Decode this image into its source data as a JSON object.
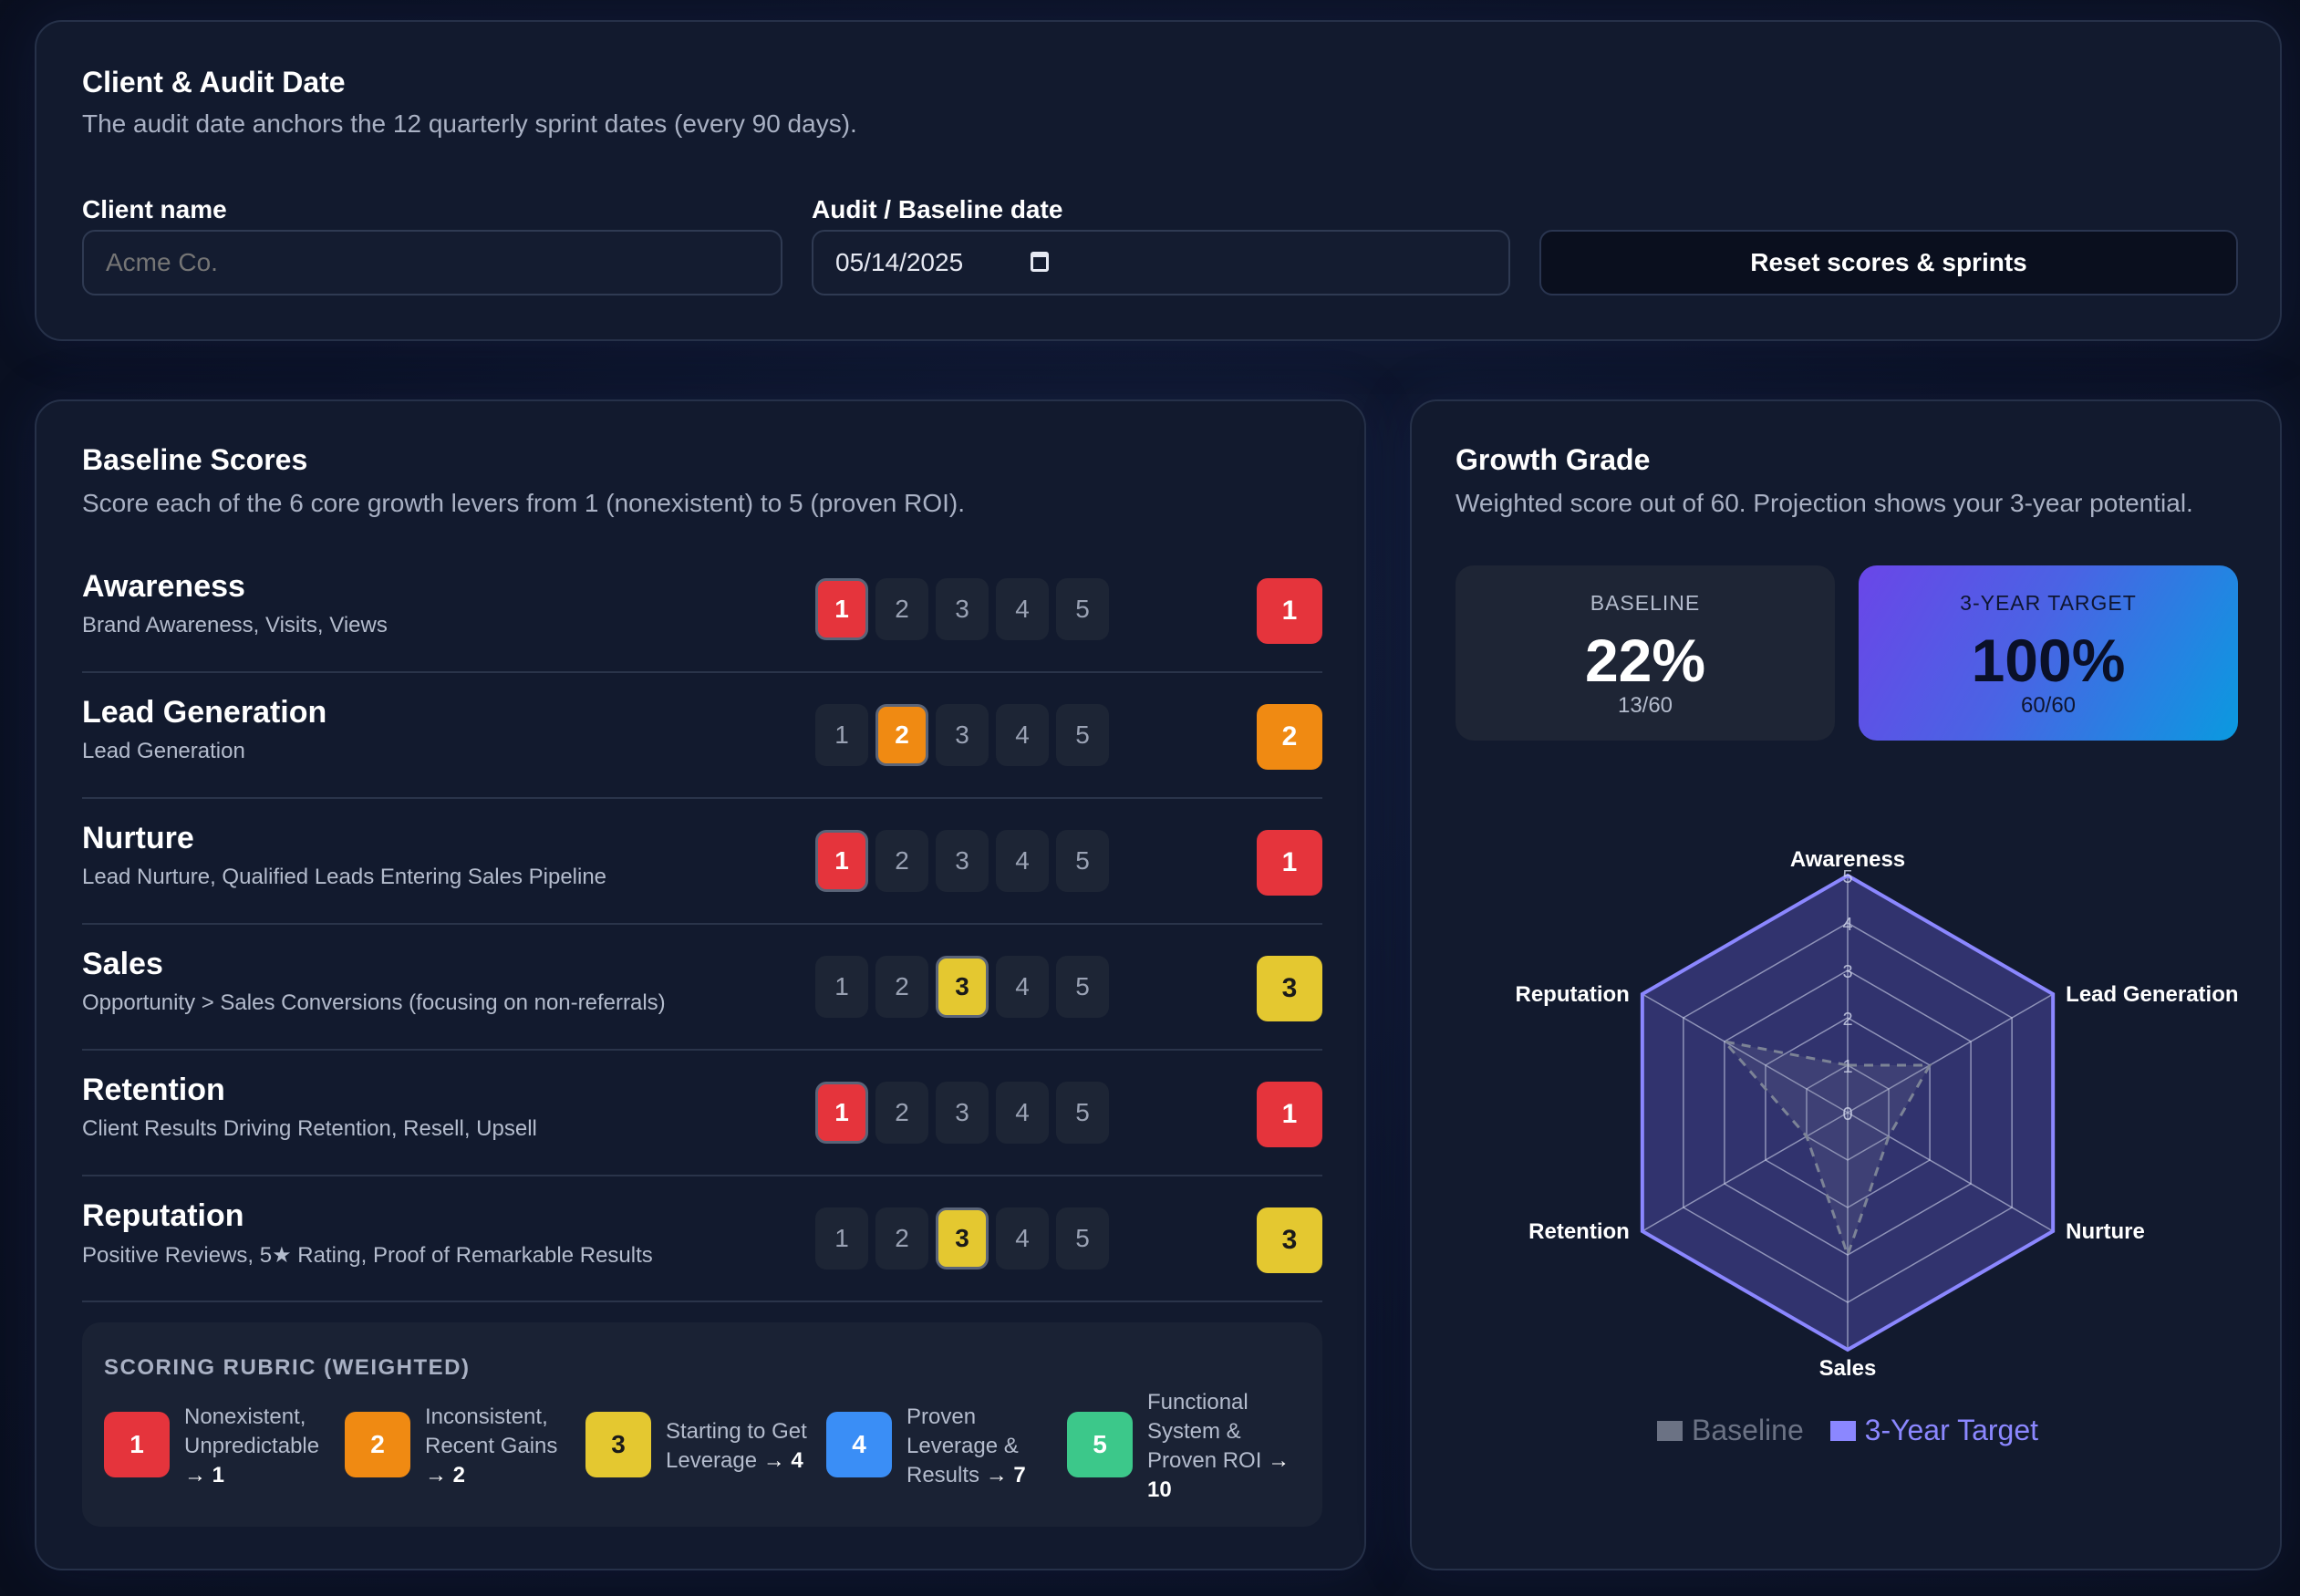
{
  "client_card": {
    "title": "Client & Audit Date",
    "subtitle": "The audit date anchors the 12 quarterly sprint dates (every 90 days).",
    "client_label": "Client name",
    "client_placeholder": "Acme Co.",
    "date_label": "Audit / Baseline date",
    "date_value": "05/14/2025",
    "reset_label": "Reset scores & sprints"
  },
  "baseline_card": {
    "title": "Baseline Scores",
    "subtitle": "Score each of the 6 core growth levers from 1 (nonexistent) to 5 (proven ROI).",
    "levers": [
      {
        "name": "Awareness",
        "desc": "Brand Awareness, Visits, Views",
        "score": "1"
      },
      {
        "name": "Lead Generation",
        "desc": "Lead Generation",
        "score": "2"
      },
      {
        "name": "Nurture",
        "desc": "Lead Nurture, Qualified Leads Entering Sales Pipeline",
        "score": "1"
      },
      {
        "name": "Sales",
        "desc": "Opportunity > Sales Conversions (focusing on non-referrals)",
        "score": "3"
      },
      {
        "name": "Retention",
        "desc": "Client Results Driving Retention, Resell, Upsell",
        "score": "1"
      },
      {
        "name": "Reputation",
        "desc": "Positive Reviews, 5★ Rating, Proof of Remarkable Results",
        "score": "3"
      }
    ],
    "score_options": [
      "1",
      "2",
      "3",
      "4",
      "5"
    ],
    "rubric": {
      "title": "SCORING RUBRIC (WEIGHTED)",
      "items": [
        {
          "level": "1",
          "text": "Nonexistent, Unpredictable",
          "weight": "→ 1"
        },
        {
          "level": "2",
          "text": "Inconsistent, Recent Gains",
          "weight": "→ 2"
        },
        {
          "level": "3",
          "text": "Starting to Get Leverage",
          "weight": "→ 4"
        },
        {
          "level": "4",
          "text": "Proven Leverage & Results",
          "weight": "→ 7"
        },
        {
          "level": "5",
          "text": "Functional System & Proven ROI",
          "weight": "→ 10"
        }
      ]
    }
  },
  "growth_card": {
    "title": "Growth Grade",
    "subtitle": "Weighted score out of 60. Projection shows your 3-year potential.",
    "baseline": {
      "label": "BASELINE",
      "value": "22%",
      "fraction": "13/60"
    },
    "target": {
      "label": "3-YEAR TARGET",
      "value": "100%",
      "fraction": "60/60"
    }
  },
  "colors": {
    "score_1": "#e5343c",
    "score_2": "#f08a12",
    "score_3": "#e4c830",
    "score_4": "#3a8ef6",
    "score_5": "#3cc88a",
    "accent": "#8b87ff",
    "baseline_series": "#6b7284"
  },
  "chart_data": {
    "type": "radar",
    "categories": [
      "Awareness",
      "Lead Generation",
      "Nurture",
      "Sales",
      "Retention",
      "Reputation"
    ],
    "series": [
      {
        "name": "Baseline",
        "values": [
          1,
          2,
          1,
          3,
          1,
          3
        ]
      },
      {
        "name": "3-Year Target",
        "values": [
          5,
          5,
          5,
          5,
          5,
          5
        ]
      }
    ],
    "ticks": [
      "0",
      "1",
      "2",
      "3",
      "4",
      "5"
    ],
    "range": [
      0,
      5
    ],
    "legend": "bottom"
  }
}
